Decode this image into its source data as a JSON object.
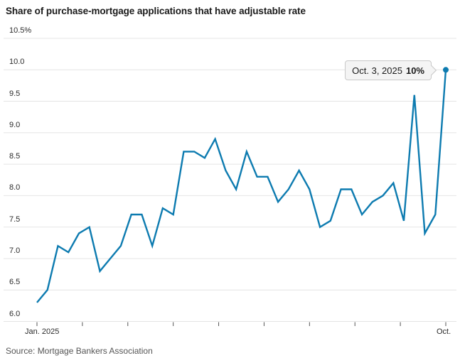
{
  "title": "Share of purchase-mortgage applications that have adjustable rate",
  "source": "Source: Mortgage Bankers Association",
  "annotation": {
    "date_label": "Oct. 3, 2025",
    "value_label": "10%"
  },
  "colors": {
    "line": "#0d7bb0",
    "grid": "#e4e4e4",
    "axis_tick": "#555555",
    "tick_label": "#2b2b2b",
    "title": "#1a1a1a",
    "source": "#555555",
    "callout_bg": "#f4f4f4",
    "callout_border": "#c9c9c9"
  },
  "chart_data": {
    "type": "line",
    "title": "Share of purchase-mortgage applications that have adjustable rate",
    "unit": "%",
    "ylim": [
      6.0,
      10.5
    ],
    "y_tick_labels": [
      "10.5%",
      "10.0",
      "9.5",
      "9.0",
      "8.5",
      "8.0",
      "7.5",
      "7.0",
      "6.5",
      "6.0"
    ],
    "x_tick_count": 10,
    "x_tick_labels": [
      "Jan. 2025",
      "Oct."
    ],
    "grid": true,
    "legend": false,
    "values": [
      6.3,
      6.5,
      7.2,
      7.1,
      7.4,
      7.5,
      6.8,
      7.0,
      7.2,
      7.7,
      7.7,
      7.2,
      7.8,
      7.7,
      8.7,
      8.7,
      8.6,
      8.9,
      8.4,
      8.1,
      8.7,
      8.3,
      8.3,
      7.9,
      8.1,
      8.4,
      8.1,
      7.5,
      7.6,
      8.1,
      8.1,
      7.7,
      7.9,
      8.0,
      8.2,
      7.6,
      9.6,
      7.4,
      7.7,
      10.0
    ],
    "end_point": {
      "label": "Oct. 3, 2025",
      "value": 10
    }
  }
}
